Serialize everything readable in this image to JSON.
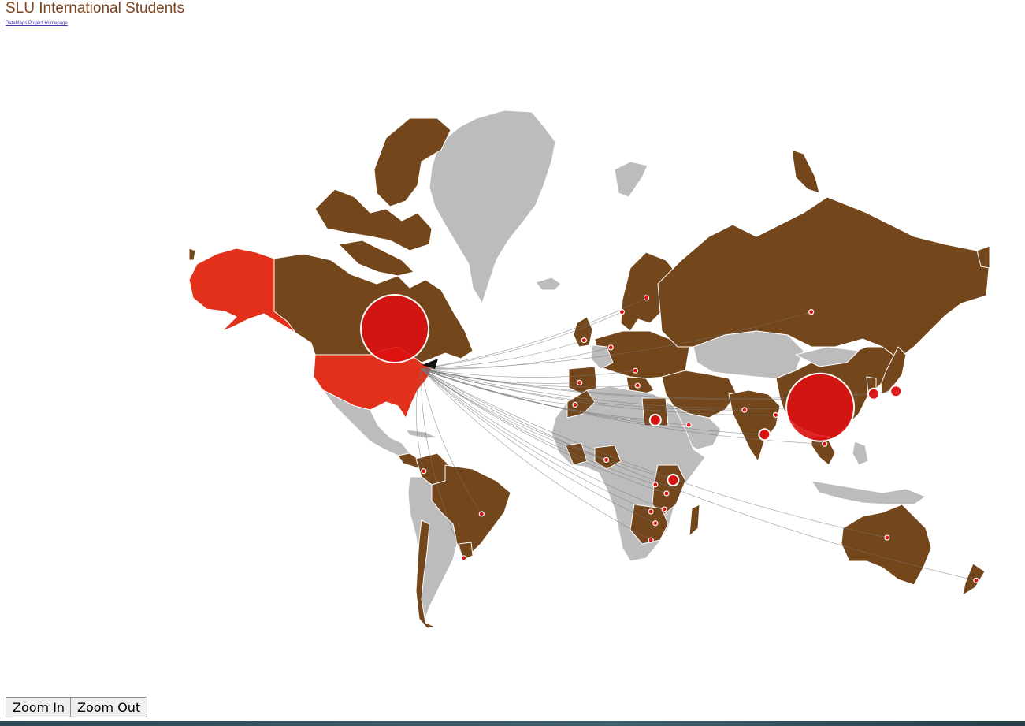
{
  "header": {
    "title": "SLU International Students",
    "home_link": "DataMaps Project Homepage"
  },
  "controls": {
    "zoom_in": "Zoom In",
    "zoom_out": "Zoom Out"
  },
  "map": {
    "projection": "mercator",
    "colors": {
      "land_default": "#bcbcbc",
      "land_with_students": "#73461b",
      "us_highlight": "#e2301a",
      "bubble": "#dd0f0f",
      "bubble_border": "#ffffff",
      "arc": "#777777"
    },
    "origin": {
      "name": "Canton, NY",
      "lon": -75.17,
      "lat": 44.59
    },
    "bubbles": [
      {
        "name": "China",
        "lon": 104,
        "lat": 31,
        "size": "large"
      },
      {
        "name": "Canada",
        "lon": -87,
        "lat": 56,
        "size": "large"
      },
      {
        "name": "South Korea",
        "lon": 128,
        "lat": 36,
        "size": "small"
      },
      {
        "name": "Japan",
        "lon": 138,
        "lat": 37,
        "size": "small"
      },
      {
        "name": "India",
        "lon": 79,
        "lat": 20,
        "size": "small"
      },
      {
        "name": "Egypt",
        "lon": 30,
        "lat": 26,
        "size": "small"
      },
      {
        "name": "Kenya",
        "lon": 38,
        "lat": 0,
        "size": "small"
      },
      {
        "name": "Nepal",
        "lon": 84,
        "lat": 28,
        "size": "tiny"
      },
      {
        "name": "Spain",
        "lon": -4,
        "lat": 40,
        "size": "tiny"
      },
      {
        "name": "Nigeria",
        "lon": 8,
        "lat": 9,
        "size": "tiny"
      },
      {
        "name": "Tanzania",
        "lon": 35,
        "lat": -6,
        "size": "tiny"
      },
      {
        "name": "Zambia",
        "lon": 28,
        "lat": -14,
        "size": "tiny"
      },
      {
        "name": "Zimbabwe",
        "lon": 30,
        "lat": -19,
        "size": "tiny"
      },
      {
        "name": "Malawi",
        "lon": 34,
        "lat": -13,
        "size": "tiny"
      },
      {
        "name": "Rwanda",
        "lon": 30,
        "lat": -2,
        "size": "tiny"
      },
      {
        "name": "South Africa",
        "lon": 28,
        "lat": -26,
        "size": "tiny"
      },
      {
        "name": "Germany",
        "lon": 10,
        "lat": 51,
        "size": "tiny"
      },
      {
        "name": "United Kingdom",
        "lon": -2,
        "lat": 53,
        "size": "tiny"
      },
      {
        "name": "Sweden",
        "lon": 15,
        "lat": 60,
        "size": "tiny"
      },
      {
        "name": "Finland",
        "lon": 26,
        "lat": 63,
        "size": "tiny"
      },
      {
        "name": "Serbia",
        "lon": 21,
        "lat": 44,
        "size": "tiny"
      },
      {
        "name": "Greece",
        "lon": 22,
        "lat": 39,
        "size": "tiny"
      },
      {
        "name": "Morocco",
        "lon": -6,
        "lat": 32,
        "size": "tiny"
      },
      {
        "name": "Saudi Arabia",
        "lon": 45,
        "lat": 24,
        "size": "tiny"
      },
      {
        "name": "Russia",
        "lon": 100,
        "lat": 60,
        "size": "tiny"
      },
      {
        "name": "Brazil",
        "lon": -48,
        "lat": -15,
        "size": "tiny"
      },
      {
        "name": "Uruguay",
        "lon": -56,
        "lat": -33,
        "size": "tiny"
      },
      {
        "name": "Australia",
        "lon": 134,
        "lat": -25,
        "size": "tiny"
      },
      {
        "name": "Colombia",
        "lon": -74,
        "lat": 4,
        "size": "tiny"
      },
      {
        "name": "Pakistan",
        "lon": 70,
        "lat": 30,
        "size": "tiny"
      },
      {
        "name": "Vietnam",
        "lon": 106,
        "lat": 16,
        "size": "tiny"
      },
      {
        "name": "New Zealand",
        "lon": 174,
        "lat": -41,
        "size": "tiny"
      }
    ]
  }
}
